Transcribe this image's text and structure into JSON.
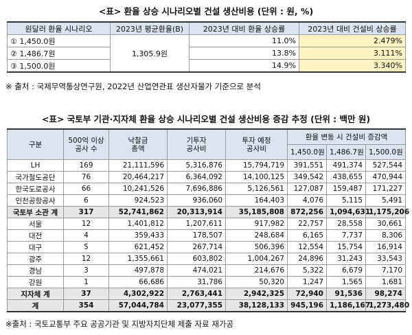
{
  "table1": {
    "title": "<표> 환율 상승 시나리오별 건설 생산비용 (단위 : 원, %)",
    "header": [
      "원달러 환율 시나리오",
      "2023년 평균환율(B)",
      "2023년 대비 환율 상승률",
      "2023년 대비 건설비 상승률"
    ],
    "average_rate": "1,305.9원",
    "rows": [
      [
        "① 1,450.0원",
        "11.0%",
        "2.479%"
      ],
      [
        "② 1,486.7원",
        "13.8%",
        "3.111%"
      ],
      [
        "③ 1,500.0원",
        "14.9%",
        "3.340%"
      ]
    ],
    "note": "※ 출처 : 국제무역통상연구원, 2022년 산업연관표 생산자물가 기준으로 분석"
  },
  "table2": {
    "title": "<표> 국토부 기관·지자체 환율 상승 시나리오별 건설 생산비용 증감 추정 (단위 : 백만 원)",
    "header": [
      [
        "구분"
      ],
      [
        "500억 이상",
        "공사 수"
      ],
      [
        "낙찰금",
        "총액"
      ],
      [
        "기투자",
        "공사비"
      ],
      [
        "투자 예정",
        "공사비"
      ]
    ],
    "group_header": "환율 변동 시 건설비 증감액",
    "sub_header": [
      "1,450.0원",
      "1,486.7원",
      "1,500.0원"
    ],
    "rows": [
      [
        "LH",
        "169",
        "21,111,596",
        "5,316,876",
        "15,794,719",
        "391,551",
        "491,374",
        "527,544"
      ],
      [
        "국가철도공단",
        "76",
        "20,464,217",
        "6,364,092",
        "14,100,125",
        "349,542",
        "438,655",
        "470,944"
      ],
      [
        "한국도로공사",
        "66",
        "10,241,526",
        "7,696,886",
        "5,126,561",
        "127,087",
        "159,487",
        "171,227"
      ],
      [
        "인천공항공사",
        "6",
        "924,523",
        "936,060",
        "164,403",
        "4,076",
        "5,115",
        "5,491"
      ],
      [
        "국토부 소관 계",
        "317",
        "52,741,862",
        "20,313,914",
        "35,185,808",
        "872,256",
        "1,094,631",
        "1,175,206"
      ],
      [
        "서울",
        "12",
        "1,401,812",
        "1,207,611",
        "917,982",
        "22,757",
        "28,558",
        "30,661"
      ],
      [
        "대전",
        "4",
        "359,433",
        "178,507",
        "248,684",
        "6,165",
        "7,737",
        "8,306"
      ],
      [
        "대구",
        "5",
        "621,452",
        "267,714",
        "506,396",
        "12,554",
        "15,754",
        "16,914"
      ],
      [
        "광주",
        "12",
        "1,355,661",
        "603,802",
        "1,004,267",
        "24,896",
        "31,243",
        "33,543"
      ],
      [
        "경남",
        "3",
        "497,878",
        "474,021",
        "214,676",
        "5,322",
        "6,679",
        "7,170"
      ],
      [
        "강원",
        "1",
        "66,686",
        "31,786",
        "50,320",
        "1,247",
        "1,565",
        "1,681"
      ],
      [
        "지자체 계",
        "37",
        "4,302,922",
        "2,763,441",
        "2,942,325",
        "72,940",
        "91,536",
        "98,274"
      ],
      [
        "계",
        "354",
        "57,044,784",
        "23,077,355",
        "38,128,133",
        "945,196",
        "1,186,167",
        "1,273,480"
      ]
    ],
    "note": "※출처 : 국토교통부 주요 공공기관 및 지방자치단체 제출 자료 재가공"
  }
}
